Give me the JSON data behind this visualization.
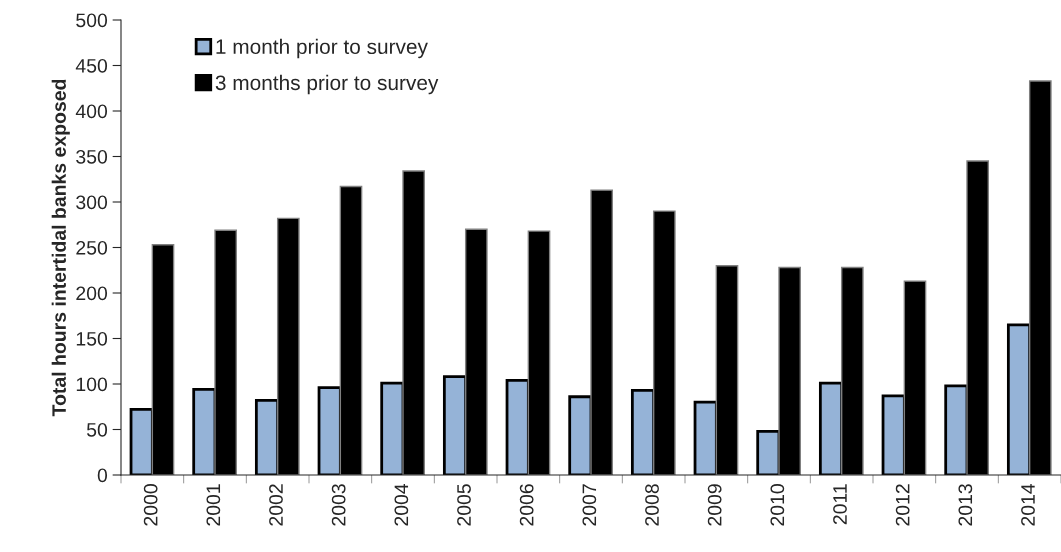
{
  "chart_data": {
    "type": "bar",
    "ylabel": "Total hours intertidal banks exposed",
    "categories": [
      "2000",
      "2001",
      "2002",
      "2003",
      "2004",
      "2005",
      "2006",
      "2007",
      "2008",
      "2009",
      "2010",
      "2011",
      "2012",
      "2013",
      "2014"
    ],
    "series": [
      {
        "name": "1 month prior to survey",
        "color": "#95b3d7",
        "values": [
          72,
          94,
          82,
          96,
          101,
          108,
          104,
          86,
          93,
          80,
          48,
          101,
          87,
          98,
          165
        ]
      },
      {
        "name": "3 months prior to survey",
        "color": "#000000",
        "values": [
          253,
          269,
          282,
          317,
          334,
          270,
          268,
          313,
          290,
          230,
          228,
          228,
          213,
          345,
          433
        ]
      }
    ],
    "ylim": [
      0,
      500
    ],
    "yticks": [
      0,
      50,
      100,
      150,
      200,
      250,
      300,
      350,
      400,
      450,
      500
    ],
    "legend": "top left",
    "grid": false
  }
}
